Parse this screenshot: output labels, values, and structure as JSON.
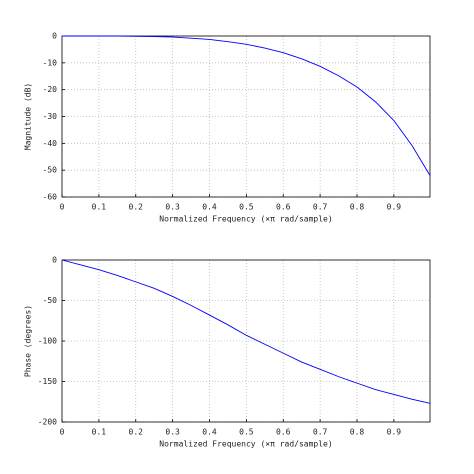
{
  "chart_data": [
    {
      "type": "line",
      "x_label": "Normalized Frequency  (×π rad/sample)",
      "y_label": "Magnitude (dB)",
      "x": [
        0,
        0.05,
        0.1,
        0.15,
        0.2,
        0.25,
        0.3,
        0.35,
        0.4,
        0.45,
        0.5,
        0.55,
        0.6,
        0.65,
        0.7,
        0.75,
        0.8,
        0.85,
        0.9,
        0.95,
        0.998
      ],
      "values": [
        0,
        0,
        0,
        0,
        -0.1,
        -0.2,
        -0.4,
        -0.8,
        -1.3,
        -2.1,
        -3.1,
        -4.5,
        -6.2,
        -8.5,
        -11.3,
        -14.8,
        -19,
        -24.5,
        -31.5,
        -41,
        -52
      ],
      "color": "#0000ff",
      "xlim": [
        0,
        0.998
      ],
      "xticks": [
        0,
        0.1,
        0.2,
        0.3,
        0.4,
        0.5,
        0.6,
        0.7,
        0.8,
        0.9
      ],
      "ylim": [
        -60,
        0
      ],
      "yticks": [
        0,
        -10,
        -20,
        -30,
        -40,
        -50,
        -60
      ],
      "grid": true
    },
    {
      "type": "line",
      "x_label": "Normalized Frequency  (×π rad/sample)",
      "y_label": "Phase (degrees)",
      "x": [
        0,
        0.05,
        0.1,
        0.15,
        0.2,
        0.25,
        0.3,
        0.35,
        0.4,
        0.45,
        0.5,
        0.55,
        0.6,
        0.65,
        0.7,
        0.75,
        0.8,
        0.85,
        0.9,
        0.95,
        0.998
      ],
      "values": [
        0,
        -6,
        -12,
        -19,
        -27,
        -35,
        -45,
        -56,
        -68,
        -80,
        -93,
        -104,
        -115,
        -126,
        -135,
        -144,
        -152,
        -160,
        -166,
        -172,
        -177
      ],
      "color": "#0000ff",
      "xlim": [
        0,
        0.998
      ],
      "xticks": [
        0,
        0.1,
        0.2,
        0.3,
        0.4,
        0.5,
        0.6,
        0.7,
        0.8,
        0.9
      ],
      "ylim": [
        -200,
        0
      ],
      "yticks": [
        0,
        -50,
        -100,
        -150,
        -200
      ],
      "grid": true
    }
  ]
}
